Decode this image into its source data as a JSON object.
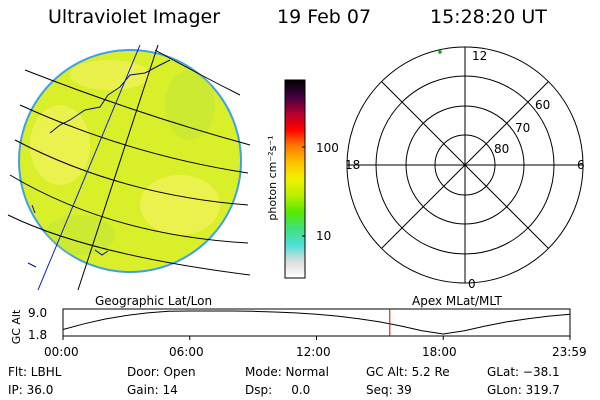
{
  "header": {
    "instrument": "Ultraviolet Imager",
    "date": "19 Feb 07",
    "time": "15:28:20 UT"
  },
  "colors": {
    "panel_fill": "#d9ef2a",
    "panel_edge": "#3ea0e8",
    "grid_line": "#000000",
    "marker_line": "#cc0000",
    "marker_dot": "#00b000"
  },
  "colorbar": {
    "label": "photon cm⁻²s⁻¹",
    "ticks": [
      "100",
      "10"
    ],
    "stops": [
      "#ffffff",
      "#dddddd",
      "#4de0d8",
      "#3fe07a",
      "#58e800",
      "#b8f000",
      "#f2f200",
      "#ffc000",
      "#ff7a00",
      "#ff0000",
      "#b00030",
      "#400040",
      "#000000"
    ]
  },
  "geo_panel": {
    "caption": "Geographic Lat/Lon",
    "icons": [
      "earth-disk-icon"
    ]
  },
  "polar_panel": {
    "caption": "Apex MLat/MLT",
    "mlt_labels": {
      "top": "12",
      "left": "18",
      "right": "6",
      "bottom": "0"
    },
    "lat_labels": [
      "60",
      "70",
      "80"
    ]
  },
  "altitude_plot": {
    "ylabel": "GC Alt",
    "ytick_top": "9.0",
    "ytick_bottom": "1.8",
    "xticks": [
      "00:00",
      "06:00",
      "12:00",
      "18:00",
      "23:59"
    ],
    "x_hours": [
      0,
      1,
      2,
      3,
      4,
      5,
      6,
      7,
      8,
      9,
      10,
      11,
      12,
      13,
      14,
      15,
      16,
      17,
      18,
      19,
      20,
      21,
      22,
      23,
      24
    ],
    "alt_re": [
      3.2,
      5.0,
      6.5,
      7.6,
      8.4,
      8.9,
      9.0,
      9.0,
      9.0,
      8.9,
      8.7,
      8.4,
      8.0,
      7.4,
      6.6,
      5.6,
      4.3,
      2.8,
      1.8,
      2.8,
      4.3,
      5.6,
      6.6,
      7.4,
      8.0
    ],
    "ymin": 1.8,
    "ymax": 9.0,
    "current_hour": 15.47
  },
  "status": {
    "row1": {
      "flt": "Flt: LBHL",
      "door": "Door: Open",
      "mode": "Mode: Normal",
      "gcalt": "GC Alt: 5.2 Re",
      "glat": "GLat: −38.1"
    },
    "row2": {
      "ip": "IP: 36.0",
      "gain": "Gain: 14",
      "dsp": "Dsp:     0.0",
      "seq": "Seq: 39",
      "glon": "GLon: 319.7"
    }
  }
}
